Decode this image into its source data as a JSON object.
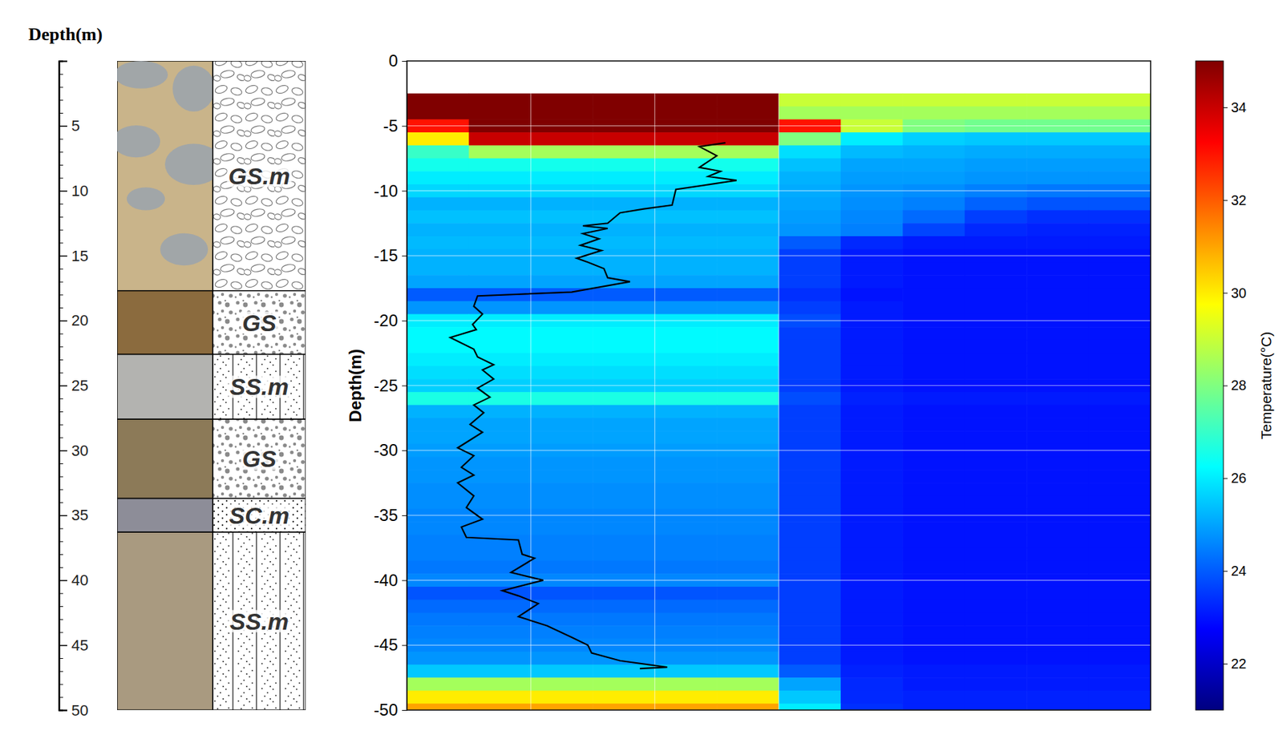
{
  "chart_data": [
    {
      "type": "strip_log",
      "ylabel": "Depth(m)",
      "ylim": [
        0,
        50
      ],
      "yticks": [
        5,
        10,
        15,
        20,
        25,
        30,
        35,
        40,
        45,
        50
      ],
      "yticks_minor": [
        1,
        2,
        3,
        4,
        6,
        7,
        8,
        9,
        11,
        12,
        13,
        14,
        16,
        17,
        18,
        19,
        21,
        22,
        23,
        24,
        26,
        27,
        28,
        29,
        31,
        32,
        33,
        34,
        36,
        37,
        38,
        39,
        41,
        42,
        43,
        44,
        46,
        47,
        48,
        49
      ],
      "layers": [
        {
          "label": "GS.m",
          "top": 0,
          "bottom": 17.7
        },
        {
          "label": "GS",
          "top": 17.7,
          "bottom": 22.6
        },
        {
          "label": "SS.m",
          "top": 22.6,
          "bottom": 27.6
        },
        {
          "label": "GS",
          "top": 27.6,
          "bottom": 33.7
        },
        {
          "label": "SC.m",
          "top": 33.7,
          "bottom": 36.3
        },
        {
          "label": "SS.m",
          "top": 36.3,
          "bottom": 50
        }
      ]
    },
    {
      "type": "heatmap",
      "ylabel": "Depth(m)",
      "ylim": [
        -50,
        0
      ],
      "yticks": [
        0,
        -5,
        -10,
        -15,
        -20,
        -25,
        -30,
        -35,
        -40,
        -45,
        -50
      ],
      "xlim": [
        0,
        6
      ],
      "xticks": [
        1,
        2,
        3
      ],
      "grid": true,
      "tick_labels": "y",
      "x": [
        0.25,
        0.75,
        1.25,
        1.75,
        2.25,
        2.75,
        3.25,
        3.75,
        4.25,
        4.75,
        5.25,
        5.75
      ],
      "y": [
        -3,
        -4,
        -5,
        -6,
        -7,
        -8,
        -9,
        -10,
        -11,
        -12,
        -13,
        -14,
        -15,
        -16,
        -17,
        -18,
        -19,
        -20,
        -21,
        -22,
        -23,
        -24,
        -25,
        -26,
        -27,
        -28,
        -29,
        -30,
        -31,
        -32,
        -33,
        -34,
        -35,
        -36,
        -37,
        -38,
        -39,
        -40,
        -41,
        -42,
        -43,
        -44,
        -45,
        -46,
        -47,
        -48,
        -49,
        -50
      ],
      "z": [
        [
          36,
          36,
          36,
          36,
          36,
          36,
          29,
          29,
          29,
          29,
          29,
          29
        ],
        [
          35,
          36,
          36,
          36,
          36,
          36,
          28.5,
          28.5,
          28.5,
          28.5,
          28.5,
          28.5
        ],
        [
          33,
          36,
          36,
          36,
          36,
          36,
          33,
          29,
          28,
          27.8,
          27.8,
          27.8
        ],
        [
          30,
          34,
          34,
          34,
          34,
          34,
          28,
          26,
          25.6,
          25.5,
          25.5,
          25.5
        ],
        [
          27,
          28.5,
          28.5,
          28.5,
          28.5,
          28.5,
          25.8,
          25.3,
          25.2,
          25.1,
          25.1,
          25.1
        ],
        [
          26.5,
          26.5,
          26.5,
          26.5,
          26.5,
          26.5,
          25.4,
          25,
          25,
          24.9,
          24.9,
          24.9
        ],
        [
          26,
          26,
          26,
          26,
          26,
          26,
          25.2,
          24.9,
          24.9,
          24.8,
          24.8,
          24.8
        ],
        [
          25.7,
          25.7,
          25.7,
          25.7,
          25.7,
          25.7,
          25.1,
          24.8,
          24.7,
          24.5,
          24.4,
          24.4
        ],
        [
          25.2,
          25.2,
          25.2,
          25.2,
          25.2,
          25.2,
          25,
          24.7,
          24.5,
          24.1,
          23.9,
          23.9
        ],
        [
          25.4,
          25.4,
          25.4,
          25.4,
          25.4,
          25.4,
          24.9,
          24.6,
          24.2,
          23.6,
          23.4,
          23.4
        ],
        [
          25.2,
          25.2,
          25.2,
          25.2,
          25.2,
          25.2,
          24.8,
          24.5,
          23.7,
          23.3,
          23.2,
          23.2
        ],
        [
          25.3,
          25.3,
          25.3,
          25.3,
          25.3,
          25.3,
          24,
          23.3,
          23.1,
          23.1,
          23.1,
          23.1
        ],
        [
          25.2,
          25.2,
          25.2,
          25.2,
          25.2,
          25.2,
          23.6,
          23.1,
          23,
          23,
          23,
          23
        ],
        [
          25.2,
          25.2,
          25.2,
          25.2,
          25.2,
          25.2,
          23.6,
          23.1,
          23,
          23,
          23,
          23
        ],
        [
          25,
          25,
          25,
          25,
          25,
          25,
          23.6,
          23.1,
          23,
          23,
          23,
          23
        ],
        [
          24,
          24,
          24,
          24,
          24,
          24,
          23.4,
          23,
          23,
          23,
          23,
          23
        ],
        [
          24.8,
          24.8,
          24.8,
          24.8,
          24.8,
          24.8,
          23.6,
          23.1,
          23,
          23,
          23,
          23
        ],
        [
          26,
          26,
          26,
          26,
          26,
          26,
          23.8,
          23.1,
          23,
          23,
          23,
          23
        ],
        [
          26.2,
          26.2,
          26.2,
          26.2,
          26.2,
          26.2,
          23.6,
          23.1,
          23,
          23,
          23,
          23
        ],
        [
          26.2,
          26.2,
          26.2,
          26.2,
          26.2,
          26.2,
          23.6,
          23.1,
          23,
          23,
          23,
          23
        ],
        [
          26,
          26,
          26,
          26,
          26,
          26,
          23.6,
          23.1,
          23,
          23,
          23,
          23
        ],
        [
          25.8,
          25.8,
          25.8,
          25.8,
          25.8,
          25.8,
          23.6,
          23.1,
          23,
          23,
          23,
          23
        ],
        [
          25.6,
          25.6,
          25.6,
          25.6,
          25.6,
          25.6,
          23.6,
          23.1,
          23,
          23,
          23,
          23
        ],
        [
          26.6,
          26.6,
          26.6,
          26.6,
          26.6,
          26.6,
          23.8,
          23.2,
          23.1,
          23.1,
          23.1,
          23.1
        ],
        [
          25.2,
          25.2,
          25.2,
          25.2,
          25.2,
          25.2,
          23.6,
          23.1,
          23,
          23,
          23,
          23
        ],
        [
          25,
          25,
          25,
          25,
          25,
          25,
          23.6,
          23.1,
          23,
          23,
          23,
          23
        ],
        [
          25,
          25,
          25,
          25,
          25,
          25,
          23.6,
          23.1,
          23,
          23,
          23,
          23
        ],
        [
          24.9,
          24.9,
          24.9,
          24.9,
          24.9,
          24.9,
          23.6,
          23.1,
          23,
          23,
          23,
          23
        ],
        [
          24.8,
          24.8,
          24.8,
          24.8,
          24.8,
          24.8,
          23.6,
          23.1,
          23,
          23,
          23,
          23
        ],
        [
          24.8,
          24.8,
          24.8,
          24.8,
          24.8,
          24.8,
          23.6,
          23.1,
          23,
          23,
          23,
          23
        ],
        [
          24.7,
          24.7,
          24.7,
          24.7,
          24.7,
          24.7,
          23.6,
          23.1,
          23,
          23,
          23,
          23
        ],
        [
          24.7,
          24.7,
          24.7,
          24.7,
          24.7,
          24.7,
          23.6,
          23.1,
          23,
          23,
          23,
          23
        ],
        [
          24.6,
          24.6,
          24.6,
          24.6,
          24.6,
          24.6,
          23.6,
          23.1,
          23,
          23,
          23,
          23
        ],
        [
          24.6,
          24.6,
          24.6,
          24.6,
          24.6,
          24.6,
          23.6,
          23.1,
          23,
          23,
          23,
          23
        ],
        [
          24.5,
          24.5,
          24.5,
          24.5,
          24.5,
          24.5,
          23.6,
          23.1,
          23,
          23,
          23,
          23
        ],
        [
          24.5,
          24.5,
          24.5,
          24.5,
          24.5,
          24.5,
          23.6,
          23.1,
          23,
          23,
          23,
          23
        ],
        [
          24.4,
          24.4,
          24.4,
          24.4,
          24.4,
          24.4,
          23.6,
          23.1,
          23,
          23,
          23,
          23
        ],
        [
          24.6,
          24.6,
          24.6,
          24.6,
          24.6,
          24.6,
          23.6,
          23.1,
          23,
          23,
          23,
          23
        ],
        [
          23.9,
          23.9,
          23.9,
          23.9,
          23.9,
          23.9,
          23.6,
          23.1,
          23,
          23,
          23,
          23
        ],
        [
          24.2,
          24.2,
          24.2,
          24.2,
          24.2,
          24.2,
          23.6,
          23.1,
          23,
          23,
          23,
          23
        ],
        [
          24.4,
          24.4,
          24.4,
          24.4,
          24.4,
          24.4,
          23.6,
          23.1,
          23,
          23,
          23,
          23
        ],
        [
          24.5,
          24.5,
          24.5,
          24.5,
          24.5,
          24.5,
          23.6,
          23.1,
          23,
          23,
          23,
          23
        ],
        [
          24.6,
          24.6,
          24.6,
          24.6,
          24.6,
          24.6,
          23.6,
          23.1,
          23,
          23,
          23,
          23
        ],
        [
          24.8,
          24.8,
          24.8,
          24.8,
          24.8,
          24.8,
          23.6,
          23.1,
          23,
          23,
          23,
          23
        ],
        [
          25.5,
          25.5,
          25.5,
          25.5,
          25.5,
          25.5,
          24,
          23.2,
          23.1,
          23.1,
          23.1,
          23.1
        ],
        [
          28.5,
          28.5,
          28.5,
          28.5,
          28.5,
          28.5,
          25,
          23.3,
          23.1,
          23.1,
          23.1,
          23.1
        ],
        [
          30,
          30,
          30,
          30,
          30,
          30,
          25.5,
          23.3,
          23.2,
          23.2,
          23.2,
          23.2
        ],
        [
          31,
          31,
          31,
          31,
          31,
          31,
          26,
          23.4,
          23.2,
          23.2,
          23.2,
          23.2
        ]
      ],
      "colorbar": {
        "label": "Temperature(°C)",
        "range": [
          21,
          35
        ],
        "ticks": [
          22,
          24,
          26,
          28,
          30,
          32,
          34
        ]
      },
      "series": [
        {
          "type": "line",
          "color": "#000000",
          "x": [
            2.57,
            2.36,
            2.5,
            2.36,
            2.53,
            2.43,
            2.66,
            2.17,
            2.14,
            1.91,
            1.72,
            1.62,
            1.42,
            1.62,
            1.42,
            1.55,
            1.4,
            1.57,
            1.37,
            1.46,
            1.59,
            1.62,
            1.8,
            1.33,
            0.57,
            0.54,
            0.61,
            0.53,
            0.56,
            0.35,
            0.54,
            0.57,
            0.7,
            0.61,
            0.7,
            0.57,
            0.67,
            0.54,
            0.62,
            0.51,
            0.61,
            0.41,
            0.54,
            0.44,
            0.54,
            0.41,
            0.54,
            0.48,
            0.61,
            0.44,
            0.48,
            0.9,
            0.93,
            1.03,
            0.84,
            1.1,
            0.77,
            0.9,
            1.06,
            0.9,
            1.13,
            1.33,
            1.46,
            1.49,
            1.72,
            2.1,
            1.88
          ],
          "y": [
            -6.3,
            -6.6,
            -7.3,
            -8.2,
            -8.5,
            -8.9,
            -9.2,
            -9.9,
            -11.1,
            -11.4,
            -11.7,
            -12.5,
            -12.7,
            -12.9,
            -13.3,
            -13.7,
            -14.2,
            -14.6,
            -15.2,
            -15.5,
            -16,
            -16.7,
            -17,
            -17.8,
            -18.1,
            -18.9,
            -19.5,
            -20.3,
            -20.7,
            -21.3,
            -22.2,
            -22.8,
            -23.4,
            -23.8,
            -24.5,
            -25.2,
            -25.9,
            -26.5,
            -27.1,
            -28,
            -28.6,
            -29.8,
            -30.4,
            -31.3,
            -31.9,
            -32.5,
            -33.5,
            -34.4,
            -35.3,
            -35.9,
            -36.7,
            -36.9,
            -38,
            -38.3,
            -39.4,
            -40,
            -40.8,
            -41.2,
            -41.8,
            -42.8,
            -43.5,
            -44.4,
            -45,
            -45.6,
            -46.2,
            -46.7,
            -46.8
          ]
        }
      ]
    }
  ]
}
